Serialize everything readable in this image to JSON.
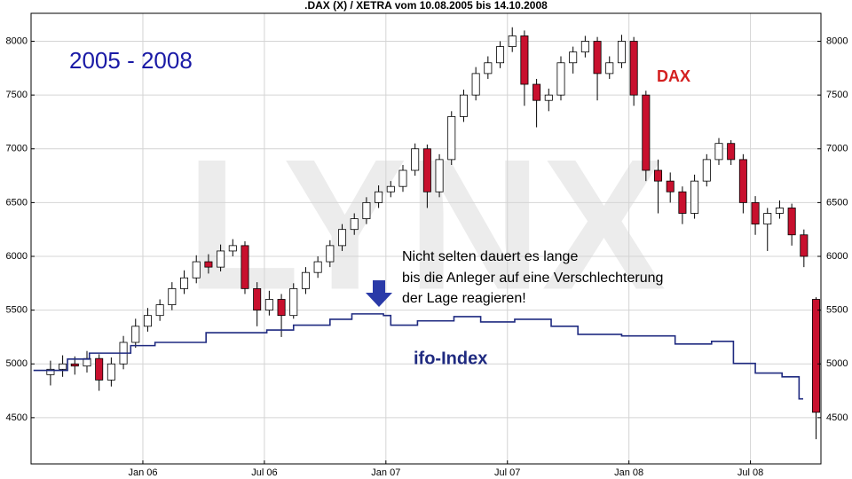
{
  "chart_data": {
    "type": "candlestick",
    "title": ".DAX (X) / XETRA vom 10.08.2005 bis 14.10.2008",
    "watermark": "LYNX",
    "annotations": [
      "2005 - 2008",
      "Nicht selten dauert es lange",
      "bis die Anleger auf eine Verschlechterung",
      "der Lage reagieren!"
    ],
    "name": "DAX",
    "up_color": "#ffffff",
    "down_color": "#c8102e",
    "x": [
      2005.62,
      2005.67,
      2005.72,
      2005.77,
      2005.82,
      2005.87,
      2005.92,
      2005.97,
      2006.02,
      2006.07,
      2006.12,
      2006.17,
      2006.22,
      2006.27,
      2006.32,
      2006.37,
      2006.42,
      2006.47,
      2006.52,
      2006.57,
      2006.62,
      2006.67,
      2006.72,
      2006.77,
      2006.82,
      2006.87,
      2006.92,
      2006.97,
      2007.02,
      2007.07,
      2007.12,
      2007.17,
      2007.22,
      2007.27,
      2007.32,
      2007.37,
      2007.42,
      2007.47,
      2007.52,
      2007.57,
      2007.62,
      2007.67,
      2007.72,
      2007.77,
      2007.82,
      2007.87,
      2007.92,
      2007.97,
      2008.02,
      2008.07,
      2008.12,
      2008.17,
      2008.22,
      2008.27,
      2008.32,
      2008.37,
      2008.42,
      2008.47,
      2008.52,
      2008.57,
      2008.62,
      2008.67,
      2008.72,
      2008.77
    ],
    "open": [
      4900,
      4950,
      5000,
      4980,
      5050,
      4850,
      5000,
      5200,
      5350,
      5450,
      5550,
      5700,
      5800,
      5950,
      5900,
      6050,
      6100,
      5700,
      5500,
      5600,
      5450,
      5700,
      5850,
      5950,
      6100,
      6250,
      6350,
      6500,
      6600,
      6650,
      6800,
      7000,
      6600,
      6900,
      7300,
      7500,
      7700,
      7800,
      7950,
      8050,
      7600,
      7450,
      7500,
      7800,
      7900,
      8000,
      7700,
      7800,
      8000,
      7500,
      6800,
      6700,
      6600,
      6400,
      6700,
      6900,
      7050,
      6900,
      6500,
      6300,
      6400,
      6450,
      6200,
      5600
    ],
    "high": [
      5030,
      5080,
      5070,
      5120,
      5090,
      5060,
      5260,
      5420,
      5520,
      5600,
      5760,
      5870,
      6010,
      6020,
      6110,
      6160,
      6140,
      5760,
      5680,
      5650,
      5750,
      5900,
      6000,
      6150,
      6300,
      6400,
      6550,
      6660,
      6700,
      6850,
      7050,
      7040,
      6950,
      7350,
      7550,
      7760,
      7860,
      8000,
      8130,
      8100,
      7650,
      7560,
      7860,
      7950,
      8050,
      8040,
      7860,
      8060,
      8040,
      7540,
      6900,
      6780,
      6650,
      6760,
      6950,
      7100,
      7080,
      6950,
      6560,
      6450,
      6520,
      6490,
      6250,
      5620
    ],
    "low": [
      4800,
      4880,
      4900,
      4920,
      4750,
      4790,
      4950,
      5150,
      5300,
      5400,
      5500,
      5650,
      5750,
      5840,
      5860,
      6000,
      5650,
      5350,
      5450,
      5250,
      5420,
      5650,
      5800,
      5900,
      6050,
      6200,
      6300,
      6450,
      6550,
      6600,
      6750,
      6450,
      6550,
      6850,
      7250,
      7450,
      7650,
      7750,
      7900,
      7400,
      7200,
      7350,
      7450,
      7700,
      7850,
      7450,
      7650,
      7750,
      7400,
      6700,
      6400,
      6500,
      6300,
      6350,
      6650,
      6850,
      6850,
      6400,
      6200,
      6050,
      6350,
      6100,
      5900,
      4300
    ],
    "close": [
      4950,
      5000,
      4980,
      5050,
      4850,
      5000,
      5200,
      5350,
      5450,
      5550,
      5700,
      5800,
      5950,
      5900,
      6050,
      6100,
      5700,
      5500,
      5600,
      5450,
      5700,
      5850,
      5950,
      6100,
      6250,
      6350,
      6500,
      6600,
      6650,
      6800,
      7000,
      6600,
      6900,
      7300,
      7500,
      7700,
      7800,
      7950,
      8050,
      7600,
      7450,
      7500,
      7800,
      7900,
      8000,
      7700,
      7800,
      8000,
      7500,
      6800,
      6700,
      6600,
      6400,
      6700,
      6900,
      7050,
      6900,
      6500,
      6300,
      6400,
      6450,
      6200,
      6000,
      4550
    ],
    "line": {
      "name": "ifo-Index",
      "color": "#1f2a80",
      "x": [
        2005.55,
        2005.69,
        2005.78,
        2005.95,
        2006.05,
        2006.26,
        2006.51,
        2006.62,
        2006.77,
        2006.86,
        2006.99,
        2007.02,
        2007.13,
        2007.28,
        2007.39,
        2007.53,
        2007.68,
        2007.79,
        2007.97,
        2008.19,
        2008.34,
        2008.43,
        2008.52,
        2008.63,
        2008.7
      ],
      "values": [
        4940,
        5045,
        5100,
        5170,
        5200,
        5290,
        5315,
        5360,
        5415,
        5465,
        5450,
        5360,
        5400,
        5440,
        5390,
        5415,
        5350,
        5275,
        5260,
        5185,
        5210,
        5005,
        4915,
        4880,
        4675
      ]
    },
    "xlim": [
      2005.54,
      2008.79
    ],
    "xticks": [
      {
        "value": 2006.0,
        "label": "Jan 06"
      },
      {
        "value": 2006.5,
        "label": "Jul 06"
      },
      {
        "value": 2007.0,
        "label": "Jan 07"
      },
      {
        "value": 2007.5,
        "label": "Jul 07"
      },
      {
        "value": 2008.0,
        "label": "Jan 08"
      },
      {
        "value": 2008.5,
        "label": "Jul 08"
      }
    ],
    "ylim": [
      4070,
      8260
    ],
    "yticks": [
      4500,
      5000,
      5500,
      6000,
      6500,
      7000,
      7500,
      8000
    ],
    "grid": true
  }
}
